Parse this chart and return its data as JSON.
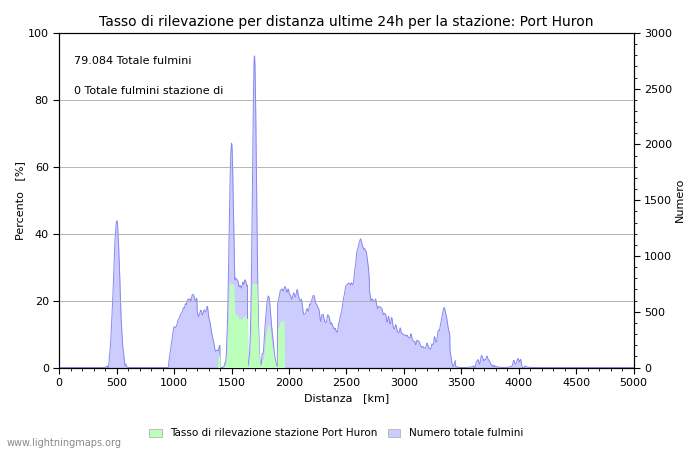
{
  "title": "Tasso di rilevazione per distanza ultime 24h per la stazione: Port Huron",
  "xlabel": "Distanza   [km]",
  "ylabel_left": "Percento   [%]",
  "ylabel_right": "Numero",
  "annotation_line1": "79.084 Totale fulmini",
  "annotation_line2": "0 Totale fulmini stazione di",
  "xlim": [
    0,
    5000
  ],
  "ylim_left": [
    0,
    100
  ],
  "ylim_right": [
    0,
    3000
  ],
  "xticks": [
    0,
    500,
    1000,
    1500,
    2000,
    2500,
    3000,
    3500,
    4000,
    4500,
    5000
  ],
  "yticks_left": [
    0,
    20,
    40,
    60,
    80,
    100
  ],
  "yticks_right": [
    0,
    500,
    1000,
    1500,
    2000,
    2500,
    3000
  ],
  "legend_label_green": "Tasso di rilevazione stazione Port Huron",
  "legend_label_blue": "Numero totale fulmini",
  "watermark": "www.lightningmaps.org",
  "bg_color": "#ffffff",
  "plot_bg_color": "#ffffff",
  "grid_color": "#aaaaaa",
  "line_color": "#8888ee",
  "fill_blue_color": "#ccccff",
  "fill_green_color": "#bbffbb",
  "title_fontsize": 10,
  "label_fontsize": 8,
  "tick_fontsize": 8,
  "annotation_fontsize": 8
}
